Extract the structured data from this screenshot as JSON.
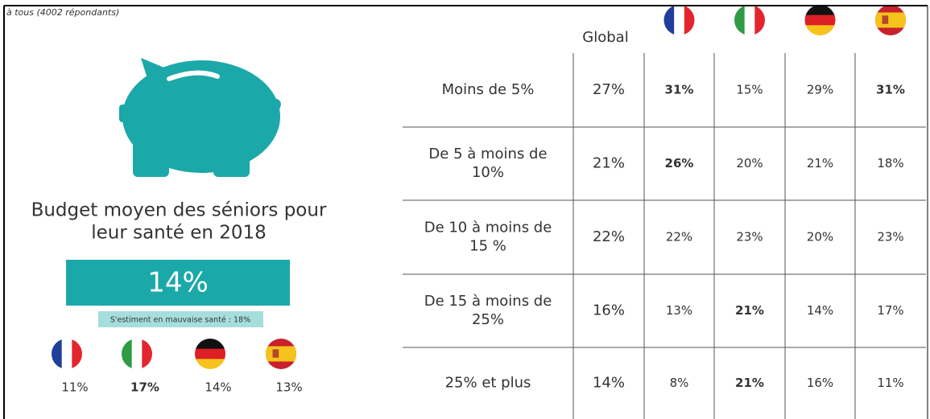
{
  "header": {
    "note": "à tous (4002 répondants)"
  },
  "panel": {
    "title_lines": [
      "Budget moyen des séniors pour",
      "leur santé en 2018"
    ],
    "main_value": "14%",
    "sub_note": "S'estiment en mauvaise santé : 18%",
    "countries": [
      {
        "value": "11%",
        "bold": false
      },
      {
        "value": "17%",
        "bold": true
      },
      {
        "value": "14%",
        "bold": false
      },
      {
        "value": "13%",
        "bold": false
      }
    ]
  },
  "table": {
    "global_header": "Global",
    "rows": [
      {
        "label": [
          "Moins de 5%"
        ],
        "global": "27%",
        "countries": [
          "31%",
          "15%",
          "29%",
          "31%"
        ],
        "bold": [
          true,
          false,
          false,
          true
        ]
      },
      {
        "label": [
          "De 5 à moins de",
          "10%"
        ],
        "global": "21%",
        "countries": [
          "26%",
          "20%",
          "21%",
          "18%"
        ],
        "bold": [
          true,
          false,
          false,
          false
        ]
      },
      {
        "label": [
          "De 10 à moins de",
          "15 %"
        ],
        "global": "22%",
        "countries": [
          "22%",
          "23%",
          "20%",
          "23%"
        ],
        "bold": [
          false,
          false,
          false,
          false
        ]
      },
      {
        "label": [
          "De 15 à moins de",
          "25%"
        ],
        "global": "16%",
        "countries": [
          "13%",
          "21%",
          "14%",
          "17%"
        ],
        "bold": [
          false,
          true,
          false,
          false
        ]
      },
      {
        "label": [
          "25% et plus"
        ],
        "global": "14%",
        "countries": [
          "8%",
          "21%",
          "16%",
          "11%"
        ],
        "bold": [
          false,
          true,
          false,
          false
        ]
      }
    ]
  }
}
